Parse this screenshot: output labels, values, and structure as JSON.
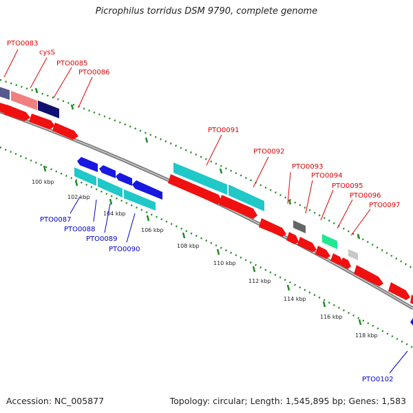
{
  "title": "Picrophilus torridus DSM 9790, complete genome",
  "footer": {
    "accession": "Accession: NC_005877",
    "summary": "Topology: circular; Length: 1,545,895 bp; Genes: 1,583"
  },
  "colors": {
    "forward_label": "#e00000",
    "reverse_label": "#0000c8",
    "backbone": "#888888",
    "tick": "#1f8a1f",
    "cds": "#f01010",
    "blue": "#1818e0",
    "cyan": "#20c8c8",
    "pink": "#f08080",
    "navy": "#101070",
    "slate": "#585890",
    "gray": "#666666",
    "lightgray": "#c8c8c8",
    "green": "#20e890"
  },
  "kbp_labels": [
    "100 kbp",
    "102 kbp",
    "104 kbp",
    "106 kbp",
    "108 kbp",
    "110 kbp",
    "112 kbp",
    "114 kbp",
    "116 kbp",
    "118 kbp"
  ],
  "forward_genes": [
    "PTO0083",
    "cysS",
    "PTO0085",
    "PTO0086",
    "PTO0091",
    "PTO0092",
    "PTO0093",
    "PTO0094",
    "PTO0095",
    "PTO0096",
    "PTO0097"
  ],
  "reverse_genes": [
    "PTO0087",
    "PTO0088",
    "PTO0089",
    "PTO0090",
    "PTO0102"
  ]
}
